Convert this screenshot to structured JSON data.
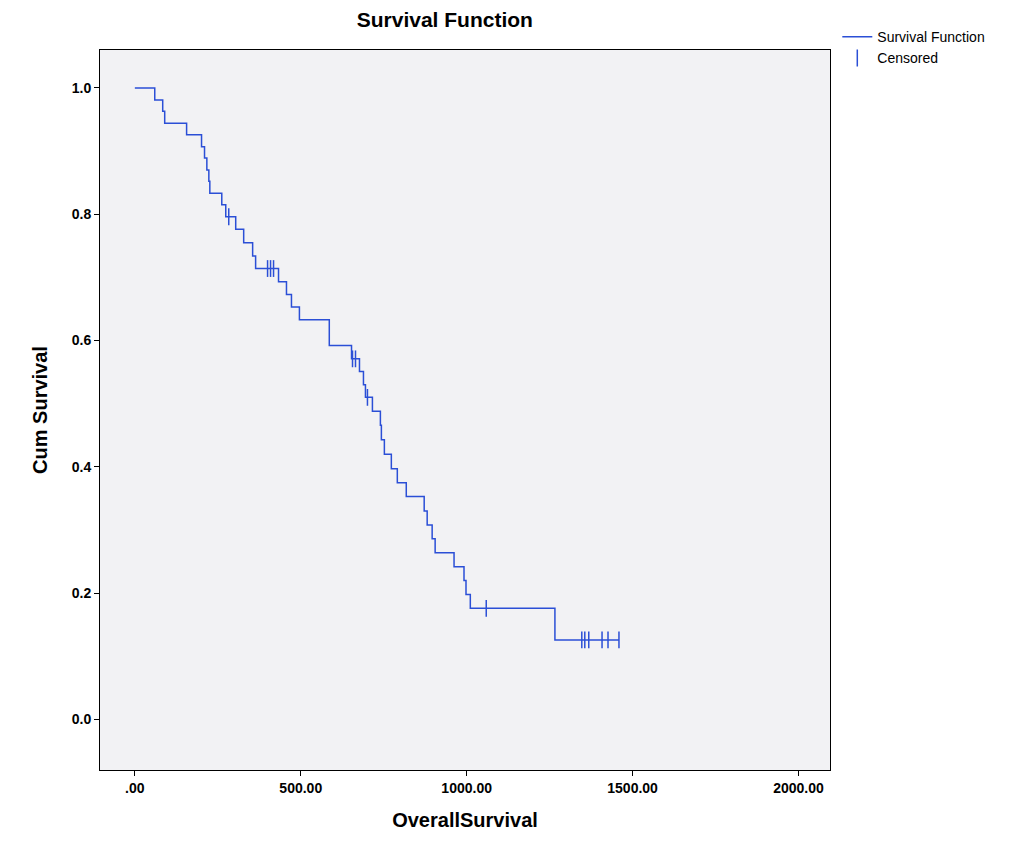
{
  "chart_data": {
    "type": "line",
    "title": "Survival Function",
    "x_label": "OverallSurvival",
    "y_label": "Cum Survival",
    "xlim": [
      -105,
      2095
    ],
    "ylim": [
      -0.08,
      1.06
    ],
    "xticks": [
      {
        "value": 0,
        "label": ".00"
      },
      {
        "value": 500,
        "label": "500.00"
      },
      {
        "value": 1000,
        "label": "1000.00"
      },
      {
        "value": 1500,
        "label": "1500.00"
      },
      {
        "value": 2000,
        "label": "2000.00"
      }
    ],
    "yticks": [
      {
        "value": 0,
        "label": "0.0"
      },
      {
        "value": 0.2,
        "label": "0.2"
      },
      {
        "value": 0.4,
        "label": "0.4"
      },
      {
        "value": 0.6,
        "label": "0.6"
      },
      {
        "value": 0.8,
        "label": "0.8"
      },
      {
        "value": 1,
        "label": "1.0"
      }
    ],
    "grid": false,
    "legend": "top right",
    "series": [
      {
        "name": "Survival Function",
        "type": "line",
        "line_style": "step",
        "color": "#2b4fd6",
        "x": [
          0,
          60,
          84,
          90,
          156,
          201,
          210,
          217,
          223,
          226,
          262,
          274,
          304,
          328,
          355,
          364,
          433,
          457,
          472,
          496,
          586,
          653,
          677,
          689,
          695,
          716,
          740,
          743,
          752,
          773,
          791,
          818,
          872,
          881,
          896,
          905,
          962,
          992,
          998,
          1011,
          1266,
          1459
        ],
        "values": [
          1.0,
          0.981,
          0.963,
          0.944,
          0.926,
          0.907,
          0.889,
          0.87,
          0.852,
          0.833,
          0.815,
          0.796,
          0.776,
          0.755,
          0.734,
          0.714,
          0.693,
          0.673,
          0.653,
          0.633,
          0.592,
          0.571,
          0.551,
          0.53,
          0.51,
          0.488,
          0.466,
          0.443,
          0.42,
          0.397,
          0.375,
          0.353,
          0.33,
          0.308,
          0.286,
          0.264,
          0.242,
          0.22,
          0.198,
          0.176,
          0.126,
          0.126
        ]
      },
      {
        "name": "Censored",
        "type": "scatter",
        "marker": "line-ns",
        "color": "#2b4fd6",
        "x": [
          283,
          400,
          409,
          418,
          656,
          665,
          701,
          1059,
          1347,
          1356,
          1368,
          1408,
          1426,
          1459
        ],
        "values": [
          0.796,
          0.714,
          0.714,
          0.714,
          0.571,
          0.571,
          0.51,
          0.176,
          0.126,
          0.126,
          0.126,
          0.126,
          0.126,
          0.126
        ]
      }
    ]
  }
}
